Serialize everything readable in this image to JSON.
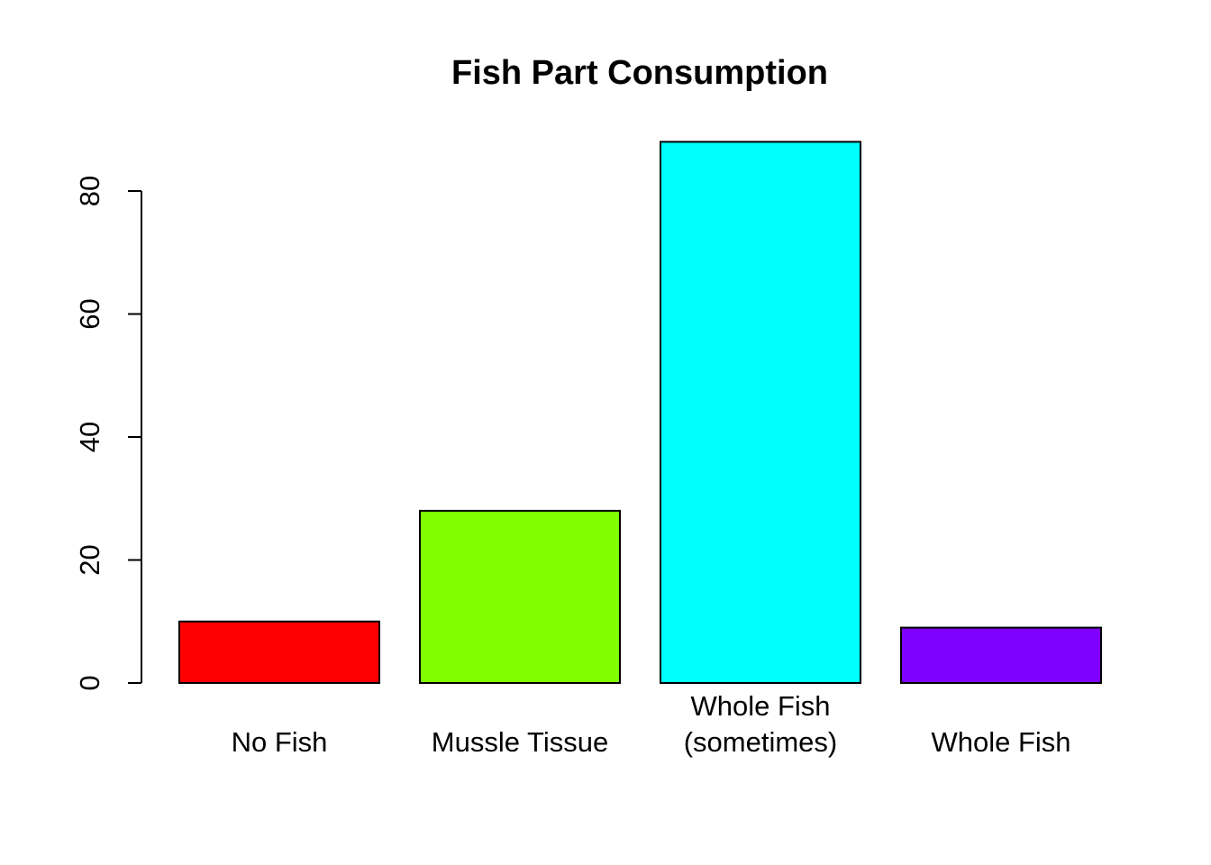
{
  "chart_data": {
    "type": "bar",
    "title": "Fish Part Consumption",
    "xlabel": "",
    "ylabel": "",
    "categories": [
      [
        "No Fish"
      ],
      [
        "Mussle Tissue"
      ],
      [
        "Whole Fish",
        "(sometimes)"
      ],
      [
        "Whole Fish"
      ]
    ],
    "values": [
      10,
      28,
      88,
      9
    ],
    "colors": [
      "#ff0000",
      "#80ff00",
      "#00ffff",
      "#8000ff"
    ],
    "yticks": [
      0,
      20,
      40,
      60,
      80
    ],
    "ylim": [
      0,
      88
    ],
    "grid": false,
    "legend": "none"
  }
}
